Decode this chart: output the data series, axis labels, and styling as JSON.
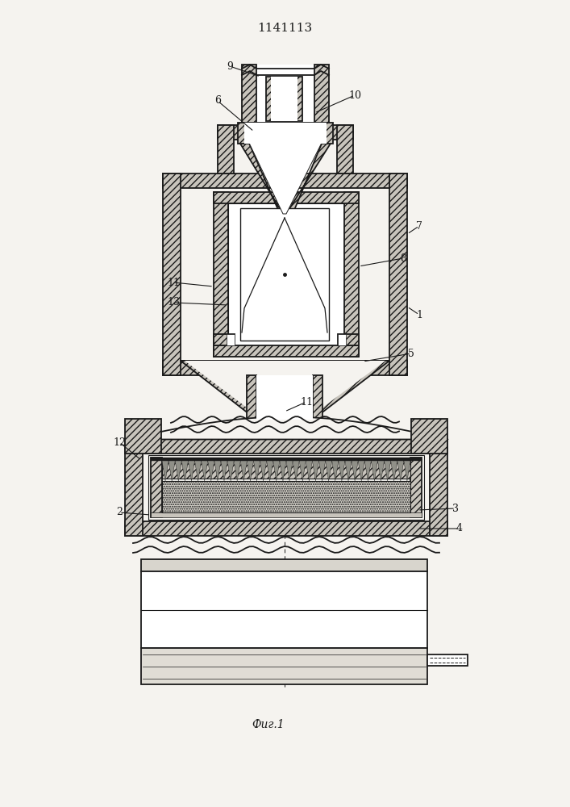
{
  "title": "1141113",
  "caption": "Фиг.1",
  "bg_color": "#f5f3ef",
  "line_color": "#1a1a1a",
  "hatch_fc": "#c8c4bc",
  "white_fc": "#ffffff",
  "light_fc": "#f5f3ef"
}
